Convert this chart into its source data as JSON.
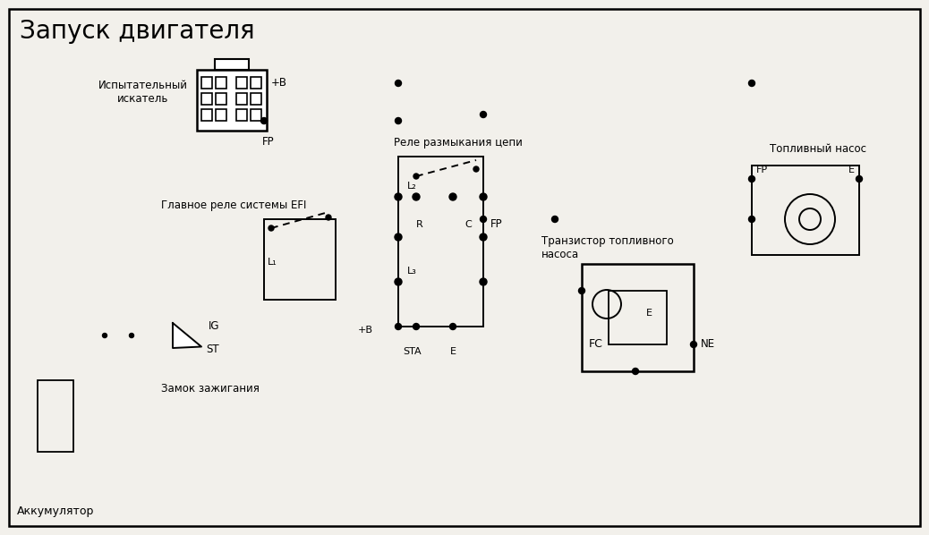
{
  "title": "Запуск двигателя",
  "bg_color": "#f2f0eb",
  "line_color": "#000000",
  "text_color": "#000000",
  "labels": {
    "title": "Запуск двигателя",
    "ispytatelny": "Испытательный\nискатель",
    "glavnoe_rele": "Главное реле системы EFI",
    "zamok": "Замок зажигания",
    "akkum": "Аккумулятор",
    "rele_razmyk": "Реле размыкания цепи",
    "toplivny_nasos": "Топливный насос",
    "tranzistor": "Транзистор топливного\nнасоса",
    "plus_b": "+B",
    "fp_conn": "FP",
    "fp_relay": "FP",
    "fp_pump": "FP",
    "e_pump": "E",
    "e_relay": "E",
    "sta": "STA",
    "plus_b2": "+B",
    "l1": "L₁",
    "l2": "L₂",
    "l3": "L₃",
    "r_label": "R",
    "c_label": "C",
    "ig": "IG",
    "st": "ST",
    "fc": "FC",
    "ne": "NE",
    "e_tranz": "E"
  }
}
